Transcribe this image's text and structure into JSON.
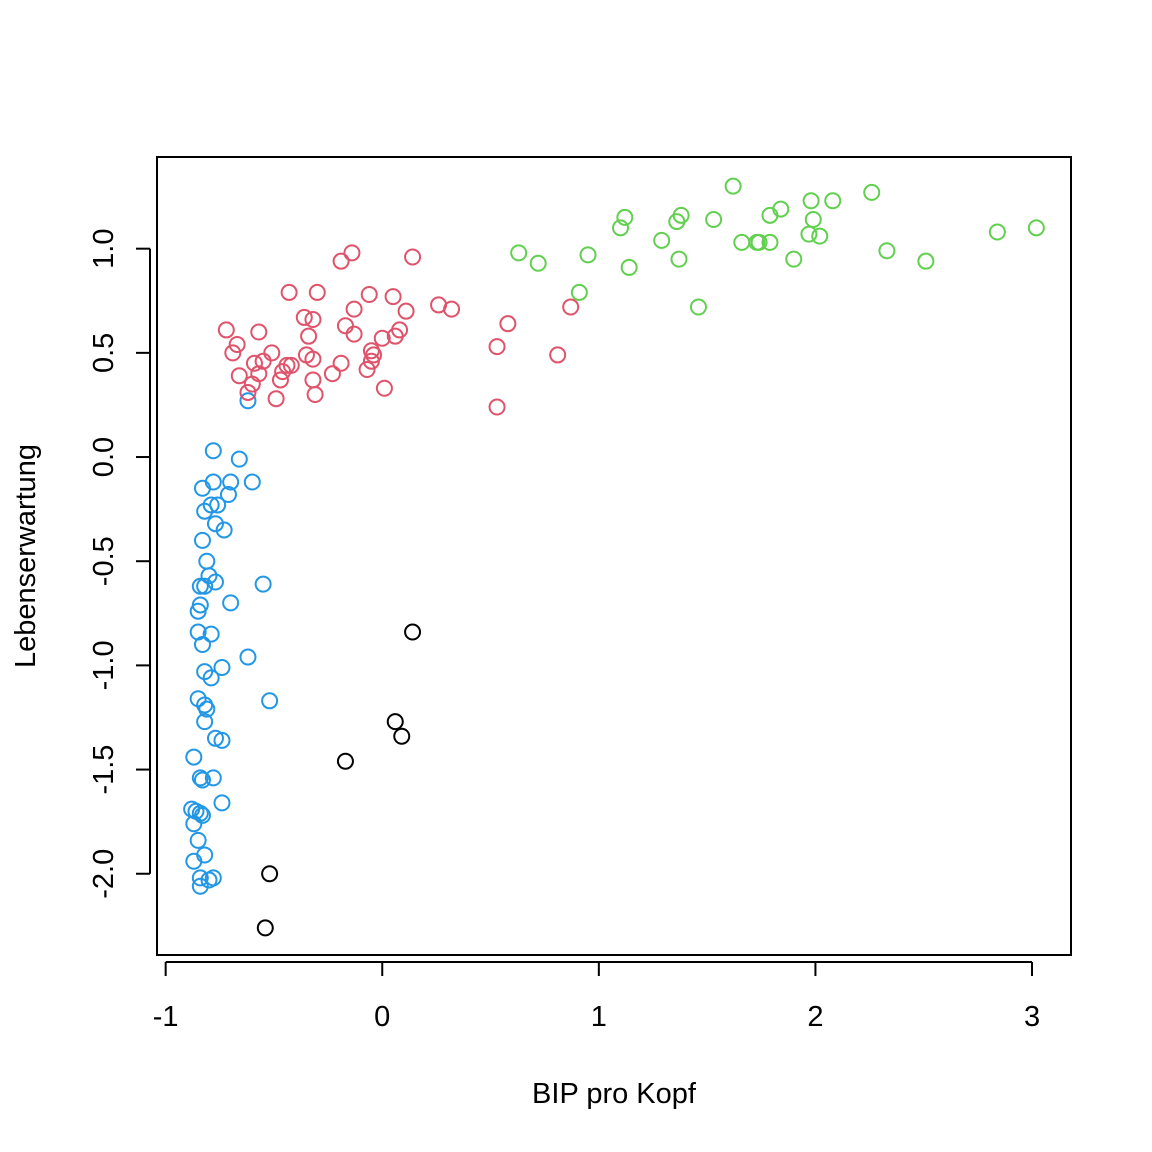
{
  "chart_data": {
    "type": "scatter",
    "title": "",
    "xlabel": "BIP pro Kopf",
    "ylabel": "Lebenserwartung",
    "xlim": [
      -1.04,
      3.18
    ],
    "ylim": [
      -2.39,
      1.44
    ],
    "xticks": [
      -1,
      0,
      1,
      2,
      3
    ],
    "xtick_labels": [
      "-1",
      "0",
      "1",
      "2",
      "3"
    ],
    "yticks": [
      -2.0,
      -1.5,
      -1.0,
      -0.5,
      0.0,
      0.5,
      1.0
    ],
    "ytick_labels": [
      "-2.0",
      "-1.5",
      "-1.0",
      "-0.5",
      "0.0",
      "0.5",
      "1.0"
    ],
    "grid": false,
    "legend": "none",
    "marker": "open-circle",
    "series": [
      {
        "color": "#2297E6",
        "points": [
          [
            -0.62,
            0.27
          ],
          [
            -0.78,
            0.03
          ],
          [
            -0.66,
            -0.01
          ],
          [
            -0.6,
            -0.12
          ],
          [
            -0.78,
            -0.12
          ],
          [
            -0.7,
            -0.12
          ],
          [
            -0.83,
            -0.15
          ],
          [
            -0.71,
            -0.18
          ],
          [
            -0.79,
            -0.23
          ],
          [
            -0.76,
            -0.23
          ],
          [
            -0.82,
            -0.26
          ],
          [
            -0.77,
            -0.32
          ],
          [
            -0.73,
            -0.35
          ],
          [
            -0.83,
            -0.4
          ],
          [
            -0.81,
            -0.5
          ],
          [
            -0.8,
            -0.57
          ],
          [
            -0.77,
            -0.6
          ],
          [
            -0.84,
            -0.62
          ],
          [
            -0.82,
            -0.62
          ],
          [
            -0.55,
            -0.61
          ],
          [
            -0.7,
            -0.7
          ],
          [
            -0.84,
            -0.71
          ],
          [
            -0.85,
            -0.74
          ],
          [
            -0.85,
            -0.84
          ],
          [
            -0.79,
            -0.85
          ],
          [
            -0.83,
            -0.9
          ],
          [
            -0.62,
            -0.96
          ],
          [
            -0.74,
            -1.01
          ],
          [
            -0.82,
            -1.03
          ],
          [
            -0.79,
            -1.06
          ],
          [
            -0.85,
            -1.16
          ],
          [
            -0.52,
            -1.17
          ],
          [
            -0.82,
            -1.19
          ],
          [
            -0.81,
            -1.21
          ],
          [
            -0.82,
            -1.27
          ],
          [
            -0.77,
            -1.35
          ],
          [
            -0.74,
            -1.36
          ],
          [
            -0.87,
            -1.44
          ],
          [
            -0.84,
            -1.54
          ],
          [
            -0.78,
            -1.54
          ],
          [
            -0.83,
            -1.55
          ],
          [
            -0.74,
            -1.66
          ],
          [
            -0.88,
            -1.69
          ],
          [
            -0.86,
            -1.7
          ],
          [
            -0.84,
            -1.71
          ],
          [
            -0.83,
            -1.72
          ],
          [
            -0.87,
            -1.76
          ],
          [
            -0.85,
            -1.84
          ],
          [
            -0.82,
            -1.91
          ],
          [
            -0.87,
            -1.94
          ],
          [
            -0.84,
            -2.02
          ],
          [
            -0.78,
            -2.02
          ],
          [
            -0.8,
            -2.03
          ],
          [
            -0.84,
            -2.06
          ]
        ]
      },
      {
        "color": "#DF536B",
        "points": [
          [
            -0.14,
            0.98
          ],
          [
            -0.19,
            0.94
          ],
          [
            0.14,
            0.96
          ],
          [
            -0.43,
            0.79
          ],
          [
            -0.3,
            0.79
          ],
          [
            -0.06,
            0.78
          ],
          [
            0.05,
            0.77
          ],
          [
            0.26,
            0.73
          ],
          [
            0.32,
            0.71
          ],
          [
            -0.13,
            0.71
          ],
          [
            0.11,
            0.7
          ],
          [
            -0.36,
            0.67
          ],
          [
            -0.32,
            0.66
          ],
          [
            -0.17,
            0.63
          ],
          [
            0.58,
            0.64
          ],
          [
            0.87,
            0.72
          ],
          [
            -0.72,
            0.61
          ],
          [
            -0.57,
            0.6
          ],
          [
            0.08,
            0.61
          ],
          [
            0.06,
            0.58
          ],
          [
            -0.34,
            0.58
          ],
          [
            -0.13,
            0.59
          ],
          [
            0.0,
            0.57
          ],
          [
            -0.67,
            0.54
          ],
          [
            0.53,
            0.53
          ],
          [
            -0.69,
            0.5
          ],
          [
            -0.51,
            0.5
          ],
          [
            -0.05,
            0.51
          ],
          [
            -0.04,
            0.49
          ],
          [
            -0.35,
            0.49
          ],
          [
            -0.55,
            0.46
          ],
          [
            -0.59,
            0.45
          ],
          [
            -0.32,
            0.47
          ],
          [
            -0.19,
            0.45
          ],
          [
            -0.05,
            0.46
          ],
          [
            -0.42,
            0.44
          ],
          [
            -0.44,
            0.44
          ],
          [
            -0.46,
            0.41
          ],
          [
            0.81,
            0.49
          ],
          [
            -0.57,
            0.4
          ],
          [
            -0.23,
            0.4
          ],
          [
            -0.07,
            0.42
          ],
          [
            -0.66,
            0.39
          ],
          [
            -0.47,
            0.37
          ],
          [
            -0.32,
            0.37
          ],
          [
            -0.6,
            0.35
          ],
          [
            0.01,
            0.33
          ],
          [
            -0.62,
            0.31
          ],
          [
            -0.31,
            0.3
          ],
          [
            -0.49,
            0.28
          ],
          [
            0.53,
            0.24
          ]
        ]
      },
      {
        "color": "#61D04F",
        "points": [
          [
            1.62,
            1.3
          ],
          [
            2.26,
            1.27
          ],
          [
            1.98,
            1.23
          ],
          [
            2.08,
            1.23
          ],
          [
            1.84,
            1.19
          ],
          [
            1.12,
            1.15
          ],
          [
            1.38,
            1.16
          ],
          [
            1.79,
            1.16
          ],
          [
            1.53,
            1.14
          ],
          [
            1.99,
            1.14
          ],
          [
            1.36,
            1.13
          ],
          [
            1.1,
            1.1
          ],
          [
            3.02,
            1.1
          ],
          [
            2.84,
            1.08
          ],
          [
            1.97,
            1.07
          ],
          [
            2.02,
            1.06
          ],
          [
            1.29,
            1.04
          ],
          [
            1.66,
            1.03
          ],
          [
            1.74,
            1.03
          ],
          [
            1.79,
            1.03
          ],
          [
            1.73,
            1.03
          ],
          [
            0.63,
            0.98
          ],
          [
            0.95,
            0.97
          ],
          [
            2.33,
            0.99
          ],
          [
            1.37,
            0.95
          ],
          [
            1.9,
            0.95
          ],
          [
            2.51,
            0.94
          ],
          [
            0.72,
            0.93
          ],
          [
            1.14,
            0.91
          ],
          [
            0.91,
            0.79
          ],
          [
            1.46,
            0.72
          ]
        ]
      },
      {
        "color": "#000000",
        "points": [
          [
            0.14,
            -0.84
          ],
          [
            0.06,
            -1.27
          ],
          [
            0.09,
            -1.34
          ],
          [
            -0.17,
            -1.46
          ],
          [
            -0.52,
            -2.0
          ],
          [
            -0.54,
            -2.26
          ]
        ]
      }
    ]
  }
}
